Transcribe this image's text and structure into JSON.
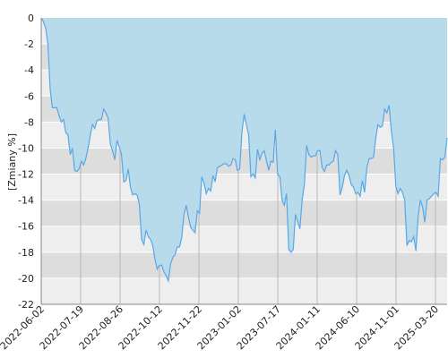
{
  "colors": {
    "band_light": "#eeeeee",
    "band_dark": "#dddddd",
    "vgrid": "#b8b8b8",
    "hgrid": "#ffffff",
    "area_fill": "#b7dbea",
    "line": "#5aa7e6",
    "axis": "#888888"
  },
  "chart_data": {
    "type": "area",
    "ylabel": "[Zmiany %]",
    "ylim": [
      -22,
      0
    ],
    "y_ticks": [
      0,
      -2,
      -4,
      -6,
      -8,
      -10,
      -12,
      -14,
      -16,
      -18,
      -20,
      -22
    ],
    "y_tick_labels": [
      "0",
      "-2",
      "-4",
      "-6",
      "-8",
      "-10",
      "-12",
      "-14",
      "-16",
      "-18",
      "-20",
      "-22"
    ],
    "x_tick_labels": [
      "2022-06-02",
      "2022-07-19",
      "2022-08-26",
      "2022-10-12",
      "2022-11-22",
      "2023-01-02",
      "2023-07-17",
      "2024-01-11",
      "2024-06-10",
      "2024-11-01",
      "2025-03-20"
    ],
    "grid": true,
    "series": [
      {
        "values": [
          0,
          -0.3,
          -0.8,
          -2,
          -5.5,
          -6.9,
          -6.9,
          -6.9,
          -7.5,
          -8,
          -7.8,
          -8.8,
          -9,
          -10.5,
          -10,
          -11.7,
          -11.8,
          -11.6,
          -11,
          -11.3,
          -10.8,
          -10,
          -9,
          -8.2,
          -8.5,
          -7.9,
          -7.8,
          -7.8,
          -7,
          -7.3,
          -7.7,
          -9.7,
          -10.2,
          -10.9,
          -9.4,
          -9.9,
          -10.5,
          -12.6,
          -12.5,
          -11.6,
          -13,
          -13.6,
          -13.5,
          -13.6,
          -14.3,
          -17,
          -17.4,
          -16.3,
          -16.8,
          -17,
          -17.5,
          -18.5,
          -19.3,
          -19,
          -19,
          -19.5,
          -19.8,
          -20.2,
          -18.9,
          -18.4,
          -18.2,
          -17.6,
          -17.6,
          -16.9,
          -15.1,
          -14.4,
          -15.3,
          -16.1,
          -16.3,
          -16.5,
          -14.8,
          -15,
          -12.2,
          -12.7,
          -13.5,
          -13.1,
          -13.3,
          -12.1,
          -12.6,
          -11.5,
          -11.4,
          -11.3,
          -11.2,
          -11.2,
          -11.4,
          -11.3,
          -10.8,
          -10.9,
          -11.7,
          -11.6,
          -8.8,
          -7.4,
          -8.2,
          -9,
          -12.2,
          -12,
          -12.3,
          -10.1,
          -10.9,
          -10.4,
          -10.2,
          -11,
          -11.7,
          -11,
          -11.1,
          -8.6,
          -12,
          -12.2,
          -14,
          -14.4,
          -13.5,
          -17.8,
          -18,
          -17.8,
          -15.1,
          -15.6,
          -16.2,
          -14,
          -12.8,
          -9.8,
          -10.5,
          -10.7,
          -10.6,
          -10.6,
          -10.2,
          -10.2,
          -11.5,
          -11.8,
          -11.3,
          -11.3,
          -11.1,
          -11,
          -10.2,
          -10.5,
          -13.6,
          -13,
          -12.1,
          -11.7,
          -12.1,
          -12.8,
          -13,
          -13.5,
          -13.4,
          -13.7,
          -12.5,
          -13.4,
          -11.5,
          -10.8,
          -10.8,
          -10.7,
          -9.2,
          -8.2,
          -8.4,
          -8.3,
          -7,
          -7.3,
          -6.7,
          -8.7,
          -10,
          -12.9,
          -13.5,
          -13.1,
          -13.4,
          -14,
          -17.5,
          -17.1,
          -17.2,
          -16.8,
          -17.9,
          -15.3,
          -14,
          -14.5,
          -15.7,
          -14,
          -13.9,
          -13.7,
          -13.5,
          -13.4,
          -13.7,
          -10.8,
          -10.9,
          -10.7,
          -9.2
        ]
      }
    ]
  }
}
